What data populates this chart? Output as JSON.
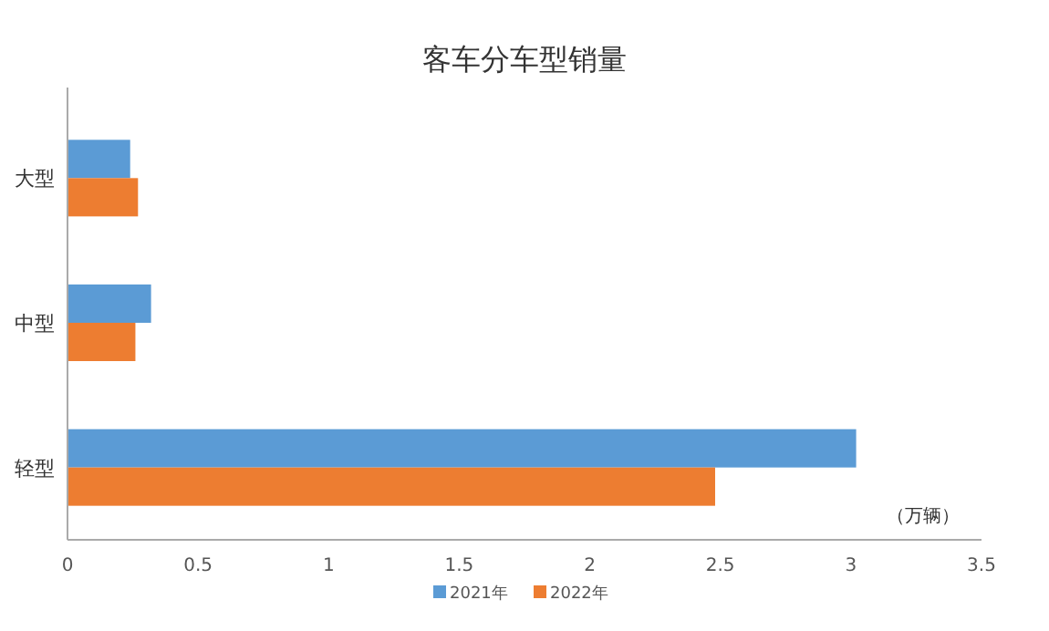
{
  "chart_data": {
    "type": "bar",
    "orientation": "horizontal",
    "title": "客车分车型销量",
    "categories": [
      "大型",
      "中型",
      "轻型"
    ],
    "series": [
      {
        "name": "2021年",
        "color": "#5b9bd5",
        "values": [
          0.24,
          0.32,
          3.02
        ]
      },
      {
        "name": "2022年",
        "color": "#ed7d31",
        "values": [
          0.27,
          0.26,
          2.48
        ]
      }
    ],
    "xlim": [
      0,
      3.5
    ],
    "xticks": [
      0,
      0.5,
      1,
      1.5,
      2,
      2.5,
      3,
      3.5
    ],
    "annotations": [
      "（万辆）"
    ],
    "legend": "bottom",
    "grid": false
  }
}
